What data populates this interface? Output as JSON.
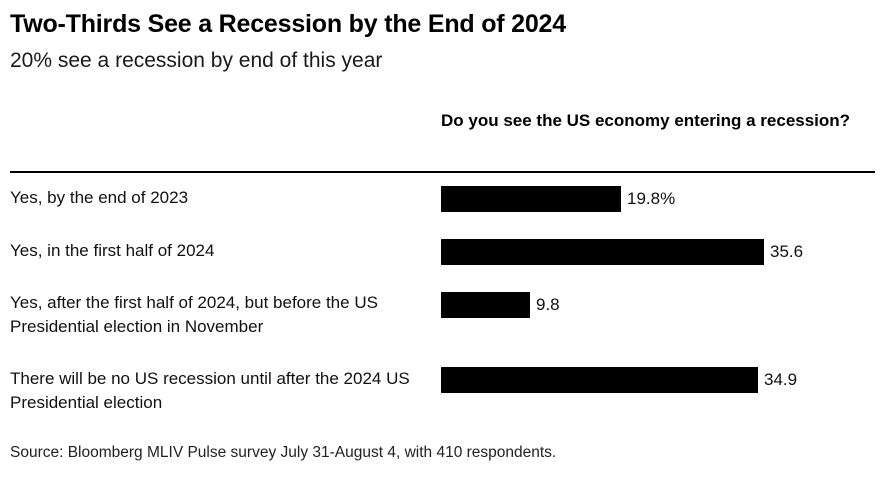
{
  "header": {
    "title": "Two-Thirds See a Recession by the End of 2024",
    "subtitle": "20% see a recession by end of this year"
  },
  "column_header": "Do you see the US economy entering a recession?",
  "footer": {
    "source": "Source: Bloomberg MLIV Pulse survey July 31-August 4, with 410 respondents."
  },
  "colors": {
    "bar": "#000000",
    "text": "#000000",
    "background": "#ffffff"
  },
  "chart_data": {
    "type": "bar",
    "orientation": "horizontal",
    "title": "Two-Thirds See a Recession by the End of 2024",
    "subtitle": "20% see a recession by end of this year",
    "xlabel": "",
    "ylabel": "",
    "categories": [
      "Yes, by the end of 2023",
      "Yes, in the first half of 2024",
      "Yes, after the first half of 2024, but before the US Presidential election in November",
      "There will be no US recession until after the 2024 US Presidential election"
    ],
    "values": [
      19.8,
      35.6,
      9.8,
      34.9
    ],
    "value_labels": [
      "19.8%",
      "35.6",
      "9.8",
      "34.9"
    ],
    "xlim": [
      0,
      40
    ],
    "grid": false,
    "legend": "none"
  }
}
